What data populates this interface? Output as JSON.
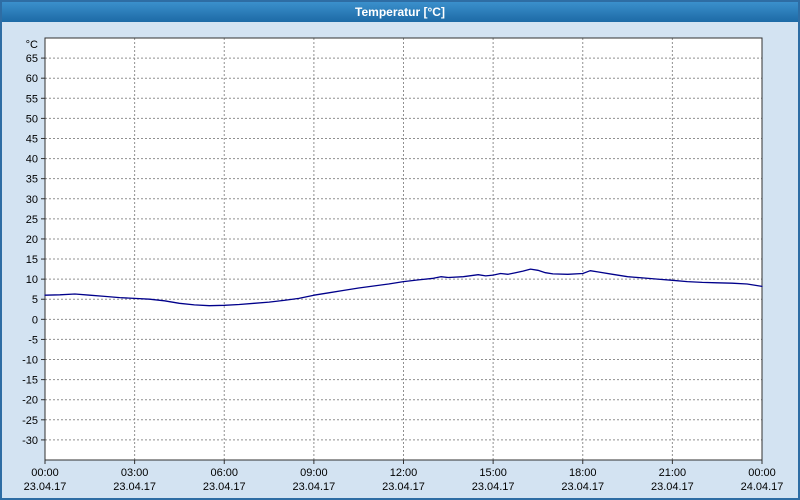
{
  "window": {
    "title": "Temperatur [°C]"
  },
  "chart_data": {
    "type": "line",
    "title": "Temperatur [°C]",
    "y_unit_label": "°C",
    "ylim": [
      -35,
      70
    ],
    "yticks": {
      "min": -30,
      "max": 65,
      "step": 5
    },
    "xlim_hours": [
      0,
      24
    ],
    "xticks": [
      {
        "hour": 0,
        "time": "00:00",
        "date": "23.04.17"
      },
      {
        "hour": 3,
        "time": "03:00",
        "date": "23.04.17"
      },
      {
        "hour": 6,
        "time": "06:00",
        "date": "23.04.17"
      },
      {
        "hour": 9,
        "time": "09:00",
        "date": "23.04.17"
      },
      {
        "hour": 12,
        "time": "12:00",
        "date": "23.04.17"
      },
      {
        "hour": 15,
        "time": "15:00",
        "date": "23.04.17"
      },
      {
        "hour": 18,
        "time": "18:00",
        "date": "23.04.17"
      },
      {
        "hour": 21,
        "time": "21:00",
        "date": "23.04.17"
      },
      {
        "hour": 24,
        "time": "00:00",
        "date": "24.04.17"
      }
    ],
    "grid": true,
    "legend": "none",
    "colors": {
      "line": "#00008b",
      "grid": "#909090",
      "plot_border": "#303030",
      "plot_background": "#ffffff",
      "outer_background": "#d3e3f2",
      "titlebar": "#2878b8"
    },
    "series": [
      {
        "name": "Temperatur",
        "points": [
          [
            0.0,
            6.0
          ],
          [
            0.5,
            6.1
          ],
          [
            1.0,
            6.3
          ],
          [
            1.5,
            6.0
          ],
          [
            2.0,
            5.7
          ],
          [
            2.5,
            5.4
          ],
          [
            3.0,
            5.2
          ],
          [
            3.5,
            5.0
          ],
          [
            4.0,
            4.6
          ],
          [
            4.5,
            4.0
          ],
          [
            5.0,
            3.6
          ],
          [
            5.5,
            3.4
          ],
          [
            6.0,
            3.5
          ],
          [
            6.5,
            3.7
          ],
          [
            7.0,
            4.0
          ],
          [
            7.5,
            4.3
          ],
          [
            8.0,
            4.7
          ],
          [
            8.5,
            5.2
          ],
          [
            9.0,
            6.0
          ],
          [
            9.5,
            6.6
          ],
          [
            10.0,
            7.2
          ],
          [
            10.5,
            7.8
          ],
          [
            11.0,
            8.3
          ],
          [
            11.5,
            8.8
          ],
          [
            12.0,
            9.4
          ],
          [
            12.5,
            9.8
          ],
          [
            13.0,
            10.2
          ],
          [
            13.25,
            10.6
          ],
          [
            13.5,
            10.4
          ],
          [
            14.0,
            10.6
          ],
          [
            14.5,
            11.1
          ],
          [
            14.75,
            10.8
          ],
          [
            15.0,
            11.0
          ],
          [
            15.25,
            11.4
          ],
          [
            15.5,
            11.2
          ],
          [
            15.75,
            11.6
          ],
          [
            16.0,
            12.0
          ],
          [
            16.25,
            12.5
          ],
          [
            16.5,
            12.2
          ],
          [
            16.75,
            11.6
          ],
          [
            17.0,
            11.3
          ],
          [
            17.5,
            11.2
          ],
          [
            18.0,
            11.4
          ],
          [
            18.25,
            12.1
          ],
          [
            18.5,
            11.8
          ],
          [
            19.0,
            11.2
          ],
          [
            19.5,
            10.6
          ],
          [
            20.0,
            10.3
          ],
          [
            20.5,
            10.0
          ],
          [
            21.0,
            9.7
          ],
          [
            21.5,
            9.4
          ],
          [
            22.0,
            9.2
          ],
          [
            22.5,
            9.1
          ],
          [
            23.0,
            9.0
          ],
          [
            23.5,
            8.8
          ],
          [
            24.0,
            8.2
          ]
        ]
      }
    ]
  }
}
